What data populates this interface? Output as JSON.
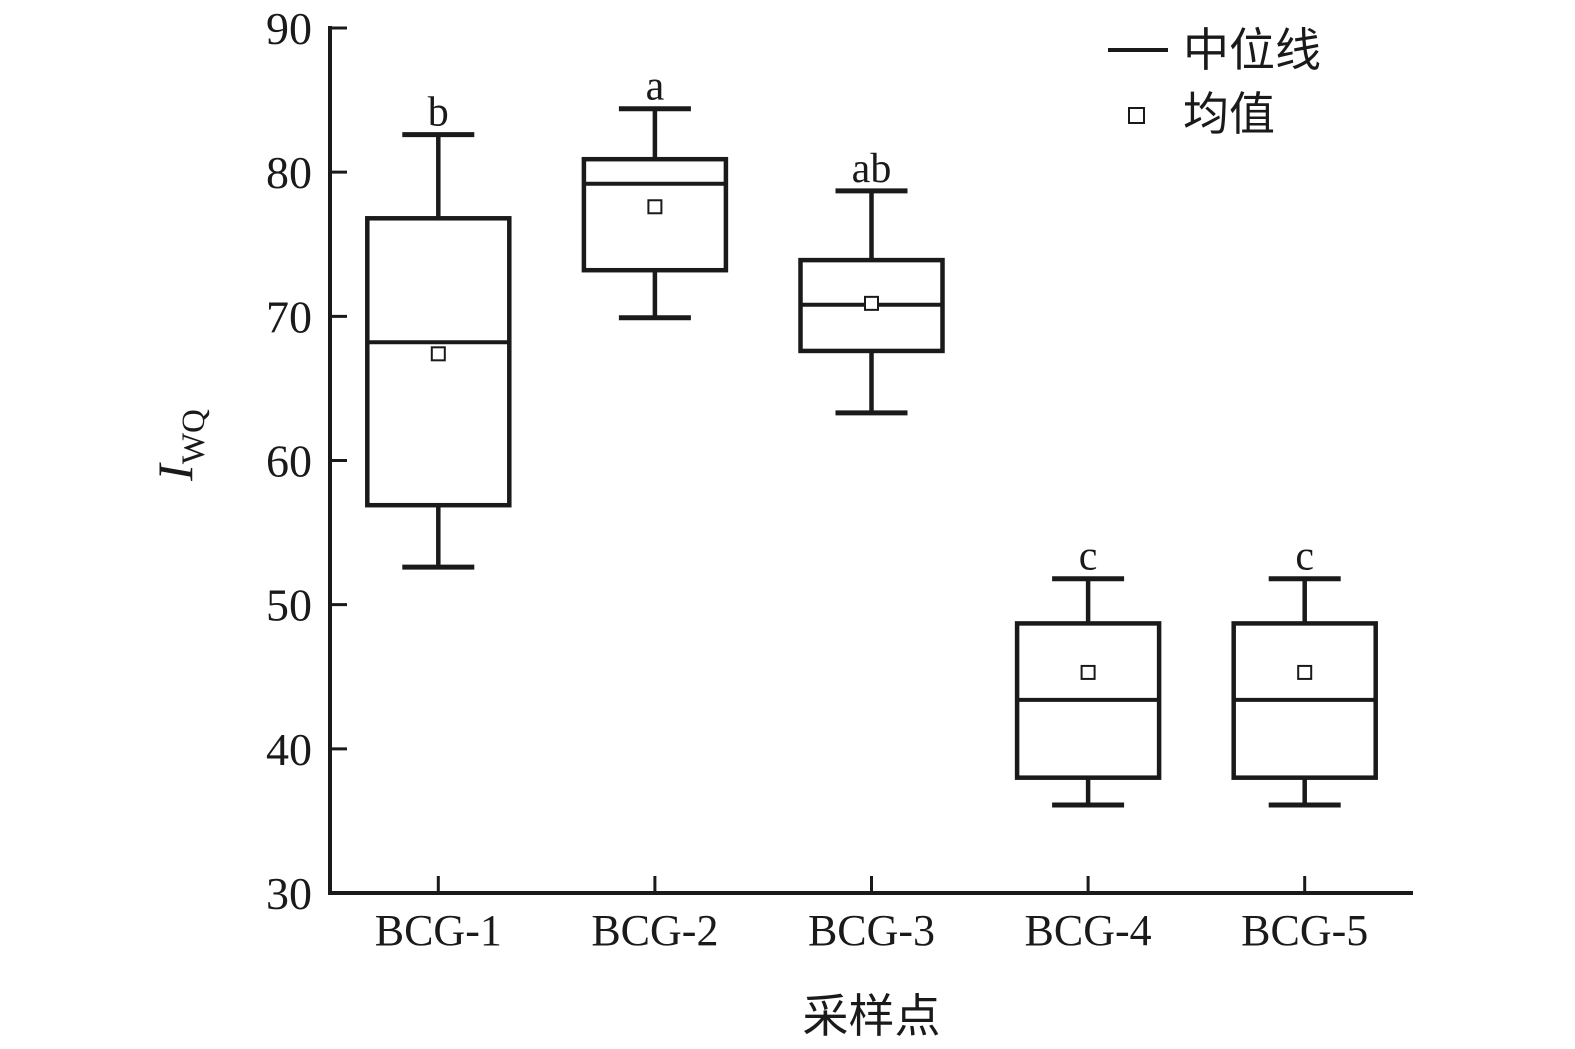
{
  "chart_data": {
    "type": "box",
    "title": "",
    "xlabel": "采样点",
    "ylabel": "I_WQ",
    "ylabel_main": "I",
    "ylabel_sub": "WQ",
    "ylim": [
      30,
      90
    ],
    "yticks": [
      30,
      40,
      50,
      60,
      70,
      80,
      90
    ],
    "grid": false,
    "legend_position": "top-right",
    "categories": [
      "BCG-1",
      "BCG-2",
      "BCG-3",
      "BCG-4",
      "BCG-5"
    ],
    "series": [
      {
        "category": "BCG-1",
        "whisker_low": 52.6,
        "q1": 56.9,
        "median": 68.2,
        "mean": 67.4,
        "q3": 76.8,
        "whisker_high": 82.6,
        "sig_letter": "b"
      },
      {
        "category": "BCG-2",
        "whisker_low": 69.9,
        "q1": 73.2,
        "median": 79.2,
        "mean": 77.6,
        "q3": 80.9,
        "whisker_high": 84.4,
        "sig_letter": "a"
      },
      {
        "category": "BCG-3",
        "whisker_low": 63.3,
        "q1": 67.6,
        "median": 70.8,
        "mean": 70.9,
        "q3": 73.9,
        "whisker_high": 78.7,
        "sig_letter": "ab"
      },
      {
        "category": "BCG-4",
        "whisker_low": 36.1,
        "q1": 38.0,
        "median": 43.4,
        "mean": 45.3,
        "q3": 48.7,
        "whisker_high": 51.8,
        "sig_letter": "c"
      },
      {
        "category": "BCG-5",
        "whisker_low": 36.1,
        "q1": 38.0,
        "median": 43.4,
        "mean": 45.3,
        "q3": 48.7,
        "whisker_high": 51.8,
        "sig_letter": "c"
      }
    ],
    "legend": [
      {
        "symbol": "line",
        "label": "中位线"
      },
      {
        "symbol": "square",
        "label": "均值"
      }
    ],
    "colors": {
      "line": "#1a1a1a",
      "background": "#ffffff"
    }
  }
}
